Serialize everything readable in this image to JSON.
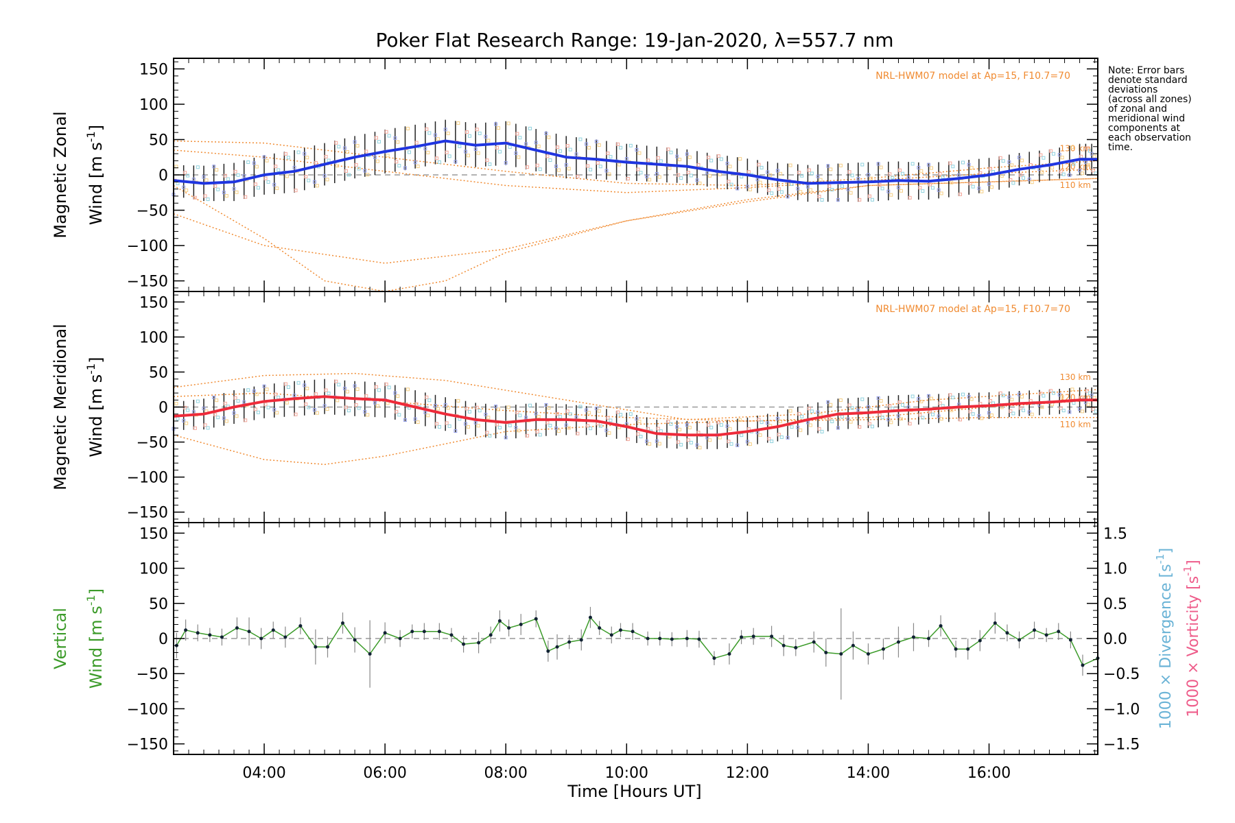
{
  "title": "Poker Flat Research Range: 19-Jan-2020, λ=557.7 nm",
  "note_lines": [
    "Note: Error bars",
    "denote standard",
    "deviations",
    "(across all zones)",
    "of zonal and",
    "meridional wind",
    "components at",
    "each observation",
    "time."
  ],
  "xlabel": "Time [Hours UT]",
  "colors": {
    "zonal": "#1f35e0",
    "meridional": "#ee2b3a",
    "vertical": "#3c9b2a",
    "model": "#f08a30",
    "divergence": "#6ab3d6",
    "vorticity": "#ee5c8a",
    "scatter_blue": "#9aa4ee",
    "scatter_red": "#f4a79a",
    "scatter_yellow": "#f5cf86",
    "scatter_cyan": "#8fd2de"
  },
  "chart_data": [
    {
      "type": "line",
      "panel": "zonal",
      "ylabel_line1": "Magnetic Zonal",
      "ylabel_line2": "Wind [m s",
      "ylabel_sup": "-1",
      "ylabel_close": "]",
      "model_label": "NRL-HWM07 model at Ap=15, F10.7=70",
      "xlim": [
        2.5,
        17.8
      ],
      "ylim": [
        -165,
        165
      ],
      "yticks": [
        150,
        100,
        50,
        0,
        -50,
        -100,
        -150
      ],
      "ytick_labels": [
        "150",
        "100",
        "50",
        "0",
        "−50",
        "−100",
        "−150"
      ],
      "xticks": [
        4,
        6,
        8,
        10,
        12,
        14,
        16
      ],
      "xtick_labels": [
        "04:00",
        "06:00",
        "08:00",
        "10:00",
        "12:00",
        "14:00",
        "16:00"
      ],
      "series": [
        {
          "role": "mean",
          "x": [
            2.5,
            3.0,
            3.5,
            4.0,
            4.5,
            5.0,
            5.5,
            6.0,
            6.5,
            7.0,
            7.5,
            8.0,
            8.5,
            9.0,
            9.5,
            10.0,
            10.5,
            11.0,
            11.5,
            12.0,
            12.5,
            13.0,
            13.5,
            14.0,
            14.5,
            15.0,
            15.5,
            16.0,
            16.5,
            17.0,
            17.5,
            17.8
          ],
          "y": [
            -8,
            -12,
            -10,
            0,
            5,
            15,
            25,
            33,
            40,
            48,
            42,
            45,
            35,
            25,
            22,
            18,
            15,
            12,
            5,
            0,
            -7,
            -12,
            -11,
            -10,
            -8,
            -9,
            -5,
            0,
            8,
            14,
            22,
            22
          ],
          "err": [
            22,
            25,
            27,
            28,
            30,
            30,
            30,
            31,
            31,
            30,
            31,
            31,
            30,
            30,
            28,
            26,
            25,
            24,
            24,
            23,
            24,
            26,
            27,
            28,
            27,
            26,
            25,
            24,
            23,
            22,
            22,
            22
          ]
        }
      ],
      "model_curves": [
        {
          "label": "130 km",
          "x": [
            2.5,
            4,
            6,
            8,
            10,
            12,
            14,
            16,
            17.8
          ],
          "y": [
            48,
            45,
            25,
            5,
            -12,
            -15,
            -5,
            10,
            20
          ]
        },
        {
          "label": "120 km",
          "x": [
            2.5,
            4,
            6,
            8,
            10,
            12,
            14,
            16,
            17.8
          ],
          "y": [
            35,
            25,
            5,
            -15,
            -25,
            -18,
            -8,
            2,
            8
          ]
        },
        {
          "label": "110 km",
          "x": [
            2.5,
            4,
            6,
            8,
            10,
            12,
            14,
            16,
            17.8
          ],
          "y": [
            -55,
            -100,
            -125,
            -105,
            -65,
            -35,
            -15,
            -10,
            -5
          ]
        },
        {
          "label": "",
          "x": [
            2.5,
            4,
            5,
            6,
            7,
            8,
            10,
            12,
            14,
            17.8
          ],
          "y": [
            -15,
            -90,
            -150,
            -165,
            -150,
            -110,
            -65,
            -38,
            -15,
            -5
          ]
        }
      ]
    },
    {
      "type": "line",
      "panel": "meridional",
      "ylabel_line1": "Magnetic Meridional",
      "ylabel_line2": "Wind [m s",
      "ylabel_sup": "-1",
      "ylabel_close": "]",
      "model_label": "NRL-HWM07 model at Ap=15, F10.7=70",
      "xlim": [
        2.5,
        17.8
      ],
      "ylim": [
        -165,
        165
      ],
      "yticks": [
        150,
        100,
        50,
        0,
        -50,
        -100,
        -150
      ],
      "ytick_labels": [
        "150",
        "100",
        "50",
        "0",
        "−50",
        "−100",
        "−150"
      ],
      "series": [
        {
          "role": "mean",
          "x": [
            2.5,
            3.0,
            3.5,
            4.0,
            4.5,
            5.0,
            5.5,
            6.0,
            6.5,
            7.0,
            7.5,
            8.0,
            8.5,
            9.0,
            9.5,
            10.0,
            10.5,
            11.0,
            11.5,
            12.0,
            12.5,
            13.0,
            13.5,
            14.0,
            14.5,
            15.0,
            15.5,
            16.0,
            16.5,
            17.0,
            17.5,
            17.8
          ],
          "y": [
            -13,
            -10,
            0,
            8,
            12,
            15,
            12,
            10,
            0,
            -10,
            -18,
            -22,
            -18,
            -18,
            -20,
            -28,
            -38,
            -40,
            -40,
            -35,
            -28,
            -18,
            -10,
            -8,
            -5,
            -3,
            0,
            2,
            5,
            7,
            10,
            10
          ],
          "err": [
            20,
            22,
            24,
            24,
            25,
            25,
            25,
            25,
            24,
            24,
            24,
            24,
            24,
            22,
            20,
            20,
            20,
            20,
            20,
            20,
            21,
            22,
            22,
            22,
            22,
            21,
            20,
            19,
            18,
            18,
            18,
            18
          ]
        }
      ],
      "model_curves": [
        {
          "label": "130 km",
          "x": [
            2.5,
            4,
            5.5,
            7,
            9,
            11,
            13,
            15,
            17.8
          ],
          "y": [
            28,
            45,
            48,
            38,
            10,
            -18,
            -10,
            10,
            25
          ]
        },
        {
          "label": "120 km",
          "x": [
            2.5,
            4,
            6,
            8,
            10,
            12,
            14,
            16,
            17.8
          ],
          "y": [
            15,
            20,
            8,
            -5,
            -15,
            -20,
            -15,
            0,
            10
          ]
        },
        {
          "label": "110 km",
          "x": [
            2.5,
            4,
            5,
            6,
            8,
            10,
            12,
            14,
            16,
            17.8
          ],
          "y": [
            -40,
            -75,
            -82,
            -70,
            -35,
            -25,
            -20,
            -18,
            -15,
            -15
          ]
        }
      ]
    },
    {
      "type": "line",
      "panel": "vertical",
      "ylabel_line1": "Vertical",
      "ylabel_line2": "Wind [m s",
      "ylabel_sup": "-1",
      "ylabel_close": "]",
      "xlim": [
        2.5,
        17.8
      ],
      "ylim": [
        -165,
        165
      ],
      "yticks": [
        150,
        100,
        50,
        0,
        -50,
        -100,
        -150
      ],
      "ytick_labels": [
        "150",
        "100",
        "50",
        "0",
        "−50",
        "−100",
        "−150"
      ],
      "y2ticks": [
        1.5,
        1.0,
        0.5,
        0.0,
        -0.5,
        -1.0,
        -1.5
      ],
      "y2tick_labels": [
        "1.5",
        "1.0",
        "0.5",
        "0.0",
        "−0.5",
        "−1.0",
        "−1.5"
      ],
      "y2label_div": "1000 × Divergence [s",
      "y2label_vort": "1000 × Vorticity [s",
      "y2label_sup": "-1",
      "y2label_close": "]",
      "series": [
        {
          "role": "vertical",
          "x": [
            2.55,
            2.7,
            2.9,
            3.1,
            3.3,
            3.55,
            3.75,
            3.95,
            4.15,
            4.35,
            4.6,
            4.85,
            5.05,
            5.3,
            5.5,
            5.75,
            6.0,
            6.25,
            6.45,
            6.65,
            6.9,
            7.1,
            7.3,
            7.55,
            7.75,
            7.9,
            8.05,
            8.25,
            8.5,
            8.7,
            8.85,
            9.05,
            9.25,
            9.4,
            9.55,
            9.75,
            9.9,
            10.1,
            10.35,
            10.55,
            10.75,
            11.0,
            11.2,
            11.45,
            11.7,
            11.9,
            12.1,
            12.4,
            12.6,
            12.8,
            13.1,
            13.3,
            13.55,
            13.75,
            14.0,
            14.25,
            14.5,
            14.75,
            15.0,
            15.2,
            15.45,
            15.65,
            15.85,
            16.1,
            16.3,
            16.5,
            16.75,
            16.95,
            17.15,
            17.35,
            17.55,
            17.8
          ],
          "y": [
            -10,
            12,
            8,
            5,
            2,
            15,
            10,
            0,
            12,
            2,
            18,
            -12,
            -12,
            22,
            -2,
            -22,
            8,
            0,
            10,
            10,
            10,
            5,
            -8,
            -6,
            5,
            25,
            15,
            20,
            28,
            -18,
            -12,
            -5,
            -2,
            30,
            15,
            5,
            12,
            10,
            0,
            0,
            -1,
            0,
            -1,
            -28,
            -22,
            2,
            3,
            3,
            -10,
            -13,
            -5,
            -20,
            -22,
            -10,
            -22,
            -15,
            -5,
            2,
            0,
            18,
            -15,
            -15,
            -3,
            22,
            8,
            -2,
            12,
            5,
            10,
            -2,
            -38,
            -28
          ],
          "err": [
            18,
            15,
            12,
            10,
            12,
            15,
            20,
            15,
            12,
            15,
            12,
            25,
            15,
            15,
            18,
            48,
            15,
            12,
            10,
            12,
            12,
            10,
            12,
            15,
            12,
            15,
            12,
            15,
            12,
            15,
            18,
            10,
            15,
            15,
            10,
            12,
            10,
            12,
            10,
            10,
            10,
            12,
            12,
            10,
            15,
            10,
            12,
            15,
            15,
            12,
            15,
            20,
            65,
            20,
            15,
            15,
            22,
            20,
            12,
            15,
            12,
            15,
            15,
            15,
            12,
            12,
            12,
            10,
            12,
            12,
            15,
            18
          ]
        }
      ]
    }
  ]
}
